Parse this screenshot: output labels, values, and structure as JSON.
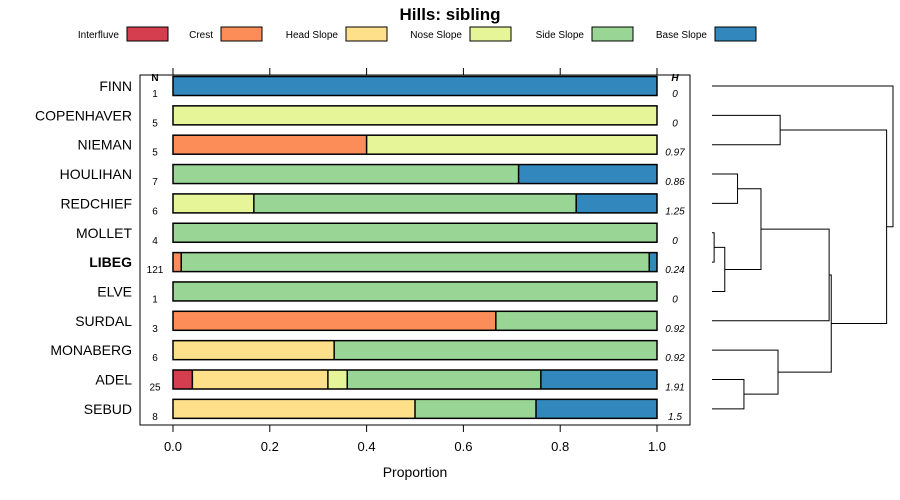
{
  "chart_data": {
    "type": "bar",
    "orientation": "horizontal",
    "stacked": true,
    "title": "Hills: sibling",
    "xlabel": "Proportion",
    "xlim": [
      0,
      1
    ],
    "x_ticks": [
      "0.0",
      "0.2",
      "0.4",
      "0.6",
      "0.8",
      "1.0"
    ],
    "legend": {
      "placement": "top",
      "entries": [
        {
          "name": "Interfluve",
          "color": "#D53E4F"
        },
        {
          "name": "Crest",
          "color": "#FC8D59"
        },
        {
          "name": "Head Slope",
          "color": "#FEE08B"
        },
        {
          "name": "Nose Slope",
          "color": "#E6F598"
        },
        {
          "name": "Side Slope",
          "color": "#99D594"
        },
        {
          "name": "Base Slope",
          "color": "#3288BD"
        }
      ]
    },
    "n_header": "N",
    "h_header": "H",
    "rows": [
      {
        "name": "FINN",
        "n": "1",
        "h": "0",
        "bold": false,
        "values": [
          0,
          0,
          0,
          0,
          0,
          1.0
        ]
      },
      {
        "name": "COPENHAVER",
        "n": "5",
        "h": "0",
        "bold": false,
        "values": [
          0,
          0,
          0,
          1.0,
          0,
          0
        ]
      },
      {
        "name": "NIEMAN",
        "n": "5",
        "h": "0.97",
        "bold": false,
        "values": [
          0,
          0.4,
          0,
          0.6,
          0,
          0
        ]
      },
      {
        "name": "HOULIHAN",
        "n": "7",
        "h": "0.86",
        "bold": false,
        "values": [
          0,
          0,
          0,
          0,
          0.714,
          0.286
        ]
      },
      {
        "name": "REDCHIEF",
        "n": "6",
        "h": "1.25",
        "bold": false,
        "values": [
          0,
          0,
          0,
          0.167,
          0.666,
          0.167
        ]
      },
      {
        "name": "MOLLET",
        "n": "4",
        "h": "0",
        "bold": false,
        "values": [
          0,
          0,
          0,
          0,
          1.0,
          0
        ]
      },
      {
        "name": "LIBEG",
        "n": "121",
        "h": "0.24",
        "bold": true,
        "values": [
          0,
          0.017,
          0,
          0,
          0.967,
          0.016
        ]
      },
      {
        "name": "ELVE",
        "n": "1",
        "h": "0",
        "bold": false,
        "values": [
          0,
          0,
          0,
          0,
          1.0,
          0
        ]
      },
      {
        "name": "SURDAL",
        "n": "3",
        "h": "0.92",
        "bold": false,
        "values": [
          0,
          0.667,
          0,
          0,
          0.333,
          0
        ]
      },
      {
        "name": "MONABERG",
        "n": "6",
        "h": "0.92",
        "bold": false,
        "values": [
          0,
          0,
          0.333,
          0,
          0.667,
          0
        ]
      },
      {
        "name": "ADEL",
        "n": "25",
        "h": "1.91",
        "bold": false,
        "values": [
          0.04,
          0,
          0.28,
          0.04,
          0.4,
          0.24
        ]
      },
      {
        "name": "SEBUD",
        "n": "8",
        "h": "1.5",
        "bold": false,
        "values": [
          0,
          0,
          0.5,
          0,
          0.25,
          0.25
        ]
      }
    ],
    "dendrogram": {
      "description": "hierarchical clustering of rows (leaf order top to bottom)",
      "merges": [
        {
          "a": 5,
          "b": 6,
          "height": 0.01
        },
        {
          "node": "m1",
          "b": 7,
          "height": 0.06
        },
        {
          "a": 3,
          "b": 4,
          "height": 0.12
        },
        {
          "node": "m3",
          "node_b": "m2",
          "height": 0.23
        },
        {
          "a": 10,
          "b": 11,
          "height": 0.15
        },
        {
          "node": "m5",
          "b": 9,
          "height": 0.31
        },
        {
          "node": "m4",
          "b": 8,
          "height": 0.55
        },
        {
          "node": "m7",
          "node_b": "m6",
          "height": 0.56
        },
        {
          "a": 1,
          "b": 2,
          "height": 0.32
        },
        {
          "node": "m8",
          "node_b": "m9",
          "height": 0.82
        },
        {
          "a": 0,
          "node": "m10",
          "height": 0.85
        }
      ]
    }
  }
}
